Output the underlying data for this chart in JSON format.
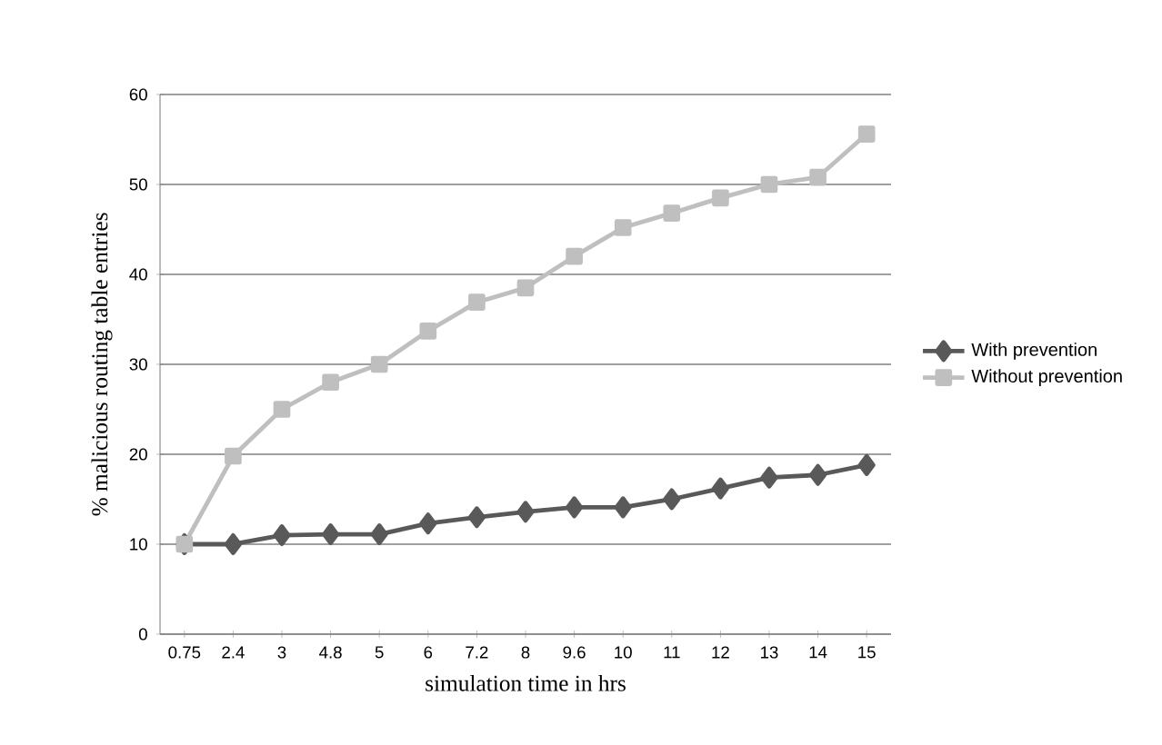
{
  "chart_data": {
    "type": "line",
    "xlabel": "simulation time in hrs",
    "ylabel": "% malicious  routing table entries",
    "categories": [
      "0.75",
      "2.4",
      "3",
      "4.8",
      "5",
      "6",
      "7.2",
      "8",
      "9.6",
      "10",
      "11",
      "12",
      "13",
      "14",
      "15"
    ],
    "series": [
      {
        "name": "With prevention",
        "color": "#595959",
        "marker": "diamond",
        "values": [
          10,
          10,
          11,
          11.1,
          11.1,
          12.3,
          13,
          13.6,
          14.1,
          14.1,
          15,
          16.2,
          17.4,
          17.7,
          18.8
        ]
      },
      {
        "name": "Without prevention",
        "color": "#bfbfbf",
        "marker": "square",
        "values": [
          10,
          19.8,
          25,
          28,
          30,
          33.7,
          36.9,
          38.5,
          42,
          45.2,
          46.8,
          48.5,
          50,
          50.8,
          55.6
        ]
      }
    ],
    "ylim": [
      0,
      60
    ],
    "yticks": [
      0,
      10,
      20,
      30,
      40,
      50,
      60
    ],
    "grid": "y",
    "legend": "right"
  }
}
